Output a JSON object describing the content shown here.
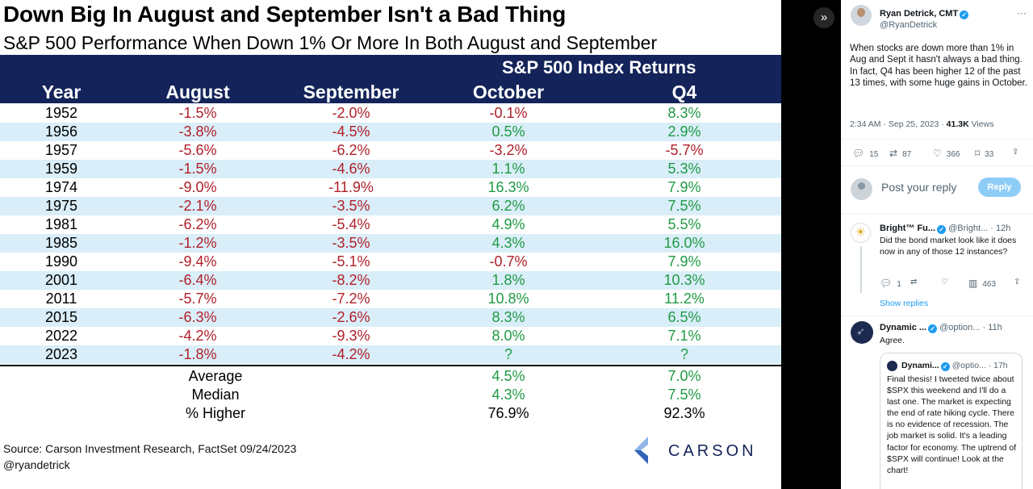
{
  "image": {
    "title": "Down Big In August and September Isn't a Bad Thing",
    "subtitle": "S&P 500 Performance When Down 1% Or More In Both August and September",
    "band_title": "S&P 500 Index Returns",
    "headers": [
      "Year",
      "August",
      "September",
      "October",
      "Q4"
    ],
    "rows": [
      {
        "year": "1952",
        "aug": "-1.5%",
        "sep": "-2.0%",
        "oct": "-0.1%",
        "q4": "8.3%"
      },
      {
        "year": "1956",
        "aug": "-3.8%",
        "sep": "-4.5%",
        "oct": "0.5%",
        "q4": "2.9%"
      },
      {
        "year": "1957",
        "aug": "-5.6%",
        "sep": "-6.2%",
        "oct": "-3.2%",
        "q4": "-5.7%"
      },
      {
        "year": "1959",
        "aug": "-1.5%",
        "sep": "-4.6%",
        "oct": "1.1%",
        "q4": "5.3%"
      },
      {
        "year": "1974",
        "aug": "-9.0%",
        "sep": "-11.9%",
        "oct": "16.3%",
        "q4": "7.9%"
      },
      {
        "year": "1975",
        "aug": "-2.1%",
        "sep": "-3.5%",
        "oct": "6.2%",
        "q4": "7.5%"
      },
      {
        "year": "1981",
        "aug": "-6.2%",
        "sep": "-5.4%",
        "oct": "4.9%",
        "q4": "5.5%"
      },
      {
        "year": "1985",
        "aug": "-1.2%",
        "sep": "-3.5%",
        "oct": "4.3%",
        "q4": "16.0%"
      },
      {
        "year": "1990",
        "aug": "-9.4%",
        "sep": "-5.1%",
        "oct": "-0.7%",
        "q4": "7.9%"
      },
      {
        "year": "2001",
        "aug": "-6.4%",
        "sep": "-8.2%",
        "oct": "1.8%",
        "q4": "10.3%"
      },
      {
        "year": "2011",
        "aug": "-5.7%",
        "sep": "-7.2%",
        "oct": "10.8%",
        "q4": "11.2%"
      },
      {
        "year": "2015",
        "aug": "-6.3%",
        "sep": "-2.6%",
        "oct": "8.3%",
        "q4": "6.5%"
      },
      {
        "year": "2022",
        "aug": "-4.2%",
        "sep": "-9.3%",
        "oct": "8.0%",
        "q4": "7.1%"
      },
      {
        "year": "2023",
        "aug": "-1.8%",
        "sep": "-4.2%",
        "oct": "?",
        "q4": "?"
      }
    ],
    "summary": [
      {
        "label": "Average",
        "oct": "4.5%",
        "q4": "7.0%"
      },
      {
        "label": "Median",
        "oct": "4.3%",
        "q4": "7.5%"
      },
      {
        "label": "% Higher",
        "oct": "76.9%",
        "q4": "92.3%"
      }
    ],
    "source": "Source: Carson Investment Research, FactSet 09/24/2023",
    "handle": "@ryandetrick",
    "brand": "CARSON",
    "colors": {
      "negative": "#b0202a",
      "positive": "#1f9a45",
      "header_band": "#14245a",
      "row_alt": "#d9eef8"
    }
  },
  "viewer": {
    "expand_icon": "chevrons-right-icon"
  },
  "tweet": {
    "author_name": "Ryan Detrick, CMT",
    "author_handle": "@RyanDetrick",
    "text": "When stocks are down more than 1% in Aug and Sept it hasn't always a bad thing. In fact, Q4 has been higher 12 of the past 13 times, with some huge gains in October.",
    "time": "2:34 AM · Sep 25, 2023 · ",
    "views_count": "41.3K",
    "views_label": " Views",
    "stats": {
      "replies": "15",
      "reposts": "87",
      "likes": "366",
      "bookmarks": "33"
    }
  },
  "reply_box": {
    "placeholder": "Post your reply",
    "button": "Reply"
  },
  "comments": [
    {
      "name": "Bright™ Fu...",
      "handle": "@Bright...",
      "time": "· 12h",
      "text": "Did the bond market look like it does now in any of those 12 instances?",
      "stats": {
        "replies": "1",
        "views": "463"
      },
      "show_replies": "Show replies"
    },
    {
      "name": "Dynamic ...",
      "handle": "@option...",
      "time": "· 11h",
      "text": "Agree.",
      "quote": {
        "name": "Dynami...",
        "handle": "@optio...",
        "time": "· 17h",
        "text": "Final thesis! I tweeted twice about $SPX this weekend and I'll do a last one. The market is expecting the end of rate hiking cycle. There is no evidence of recession. The job market is solid. It's a leading factor for economy. The uptrend of $SPX will continue! Look at the chart!"
      }
    }
  ]
}
